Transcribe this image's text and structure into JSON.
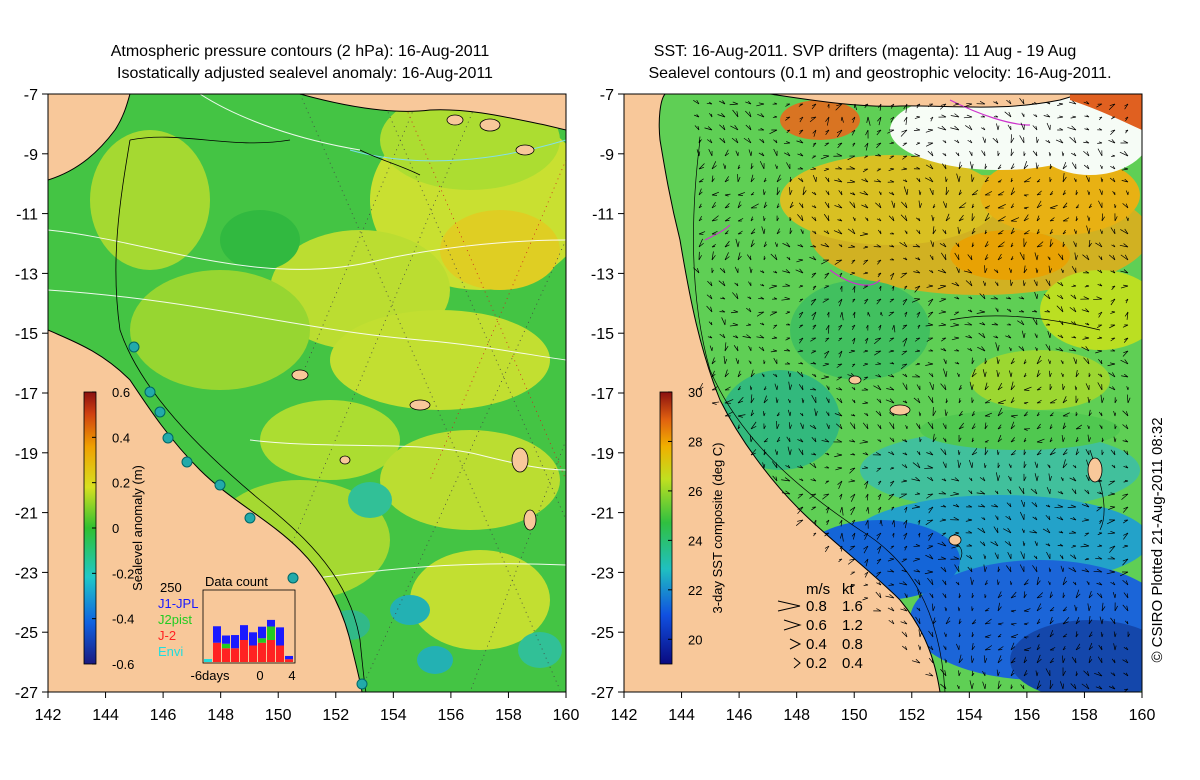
{
  "left_panel": {
    "title_line1": "Atmospheric pressure contours (2 hPa): 16-Aug-2011",
    "title_line2": "Isostatically adjusted sealevel anomaly: 16-Aug-2011",
    "colorbar": {
      "label": "Sealevel anomaly (m)",
      "ticks": [
        "0.6",
        "0.4",
        "0.2",
        "0",
        "-0.2",
        "-0.4",
        "-0.6"
      ],
      "min": -0.6,
      "max": 0.6
    },
    "inset": {
      "title": "Data count",
      "y_label": "250",
      "x_ticks": [
        "-6days",
        "0",
        "4"
      ],
      "legend": [
        {
          "label": "J1-JPL",
          "color": "#1a1aff"
        },
        {
          "label": "J2pist",
          "color": "#22cc22"
        },
        {
          "label": "J-2",
          "color": "#ff2222"
        },
        {
          "label": "Envi",
          "color": "#22dddd"
        }
      ],
      "bars": [
        {
          "day": -6,
          "J1": 5,
          "J2": 0,
          "J2x": 0,
          "Envi": 1
        },
        {
          "day": -5,
          "J1": 50,
          "J2": 35,
          "J2x": 0,
          "Envi": 0
        },
        {
          "day": -4,
          "J1": 25,
          "J2": 20,
          "J2x": 5,
          "Envi": 0
        },
        {
          "day": -3,
          "J1": 40,
          "J2": 25,
          "J2x": 0,
          "Envi": 0
        },
        {
          "day": -2,
          "J1": 45,
          "J2": 40,
          "J2x": 0,
          "Envi": 0
        },
        {
          "day": -1,
          "J1": 40,
          "J2": 30,
          "J2x": 0,
          "Envi": 0
        },
        {
          "day": 0,
          "J1": 35,
          "J2": 30,
          "J2x": 5,
          "Envi": 0
        },
        {
          "day": 1,
          "J1": 20,
          "J2": 25,
          "J2x": 15,
          "Envi": 0
        },
        {
          "day": 2,
          "J1": 55,
          "J2": 30,
          "J2x": 0,
          "Envi": 0
        },
        {
          "day": 3,
          "J1": 10,
          "J2": 5,
          "J2x": 0,
          "Envi": 0
        }
      ]
    }
  },
  "right_panel": {
    "title_line1": "SST: 16-Aug-2011. SVP drifters (magenta): 11 Aug - 19 Aug",
    "title_line2": "Sealevel contours (0.1 m) and geostrophic velocity: 16-Aug-2011.",
    "colorbar": {
      "label": "3-day SST composite (deg C)",
      "ticks": [
        "30",
        "28",
        "26",
        "24",
        "22",
        "20"
      ],
      "min": 19,
      "max": 30
    },
    "velocity_legend": {
      "header_ms": "m/s",
      "header_kt": "kt",
      "rows": [
        {
          "ms": "0.8",
          "kt": "1.6"
        },
        {
          "ms": "0.6",
          "kt": "1.2"
        },
        {
          "ms": "0.4",
          "kt": "0.8"
        },
        {
          "ms": "0.2",
          "kt": "0.4"
        }
      ]
    }
  },
  "axes": {
    "y_ticks": [
      "-7",
      "-9",
      "-11",
      "-13",
      "-15",
      "-17",
      "-19",
      "-21",
      "-23",
      "-25",
      "-27"
    ],
    "x_ticks": [
      "142",
      "144",
      "146",
      "148",
      "150",
      "152",
      "154",
      "156",
      "158",
      "160"
    ],
    "lon_range": [
      142,
      160
    ],
    "lat_range": [
      -27,
      -7
    ]
  },
  "credit": "© CSIRO Plotted 21-Aug-2011 08:32",
  "colors": {
    "land": "#f8c89a",
    "sea_left": "#44c444",
    "sea_right": "#5fcf55"
  }
}
